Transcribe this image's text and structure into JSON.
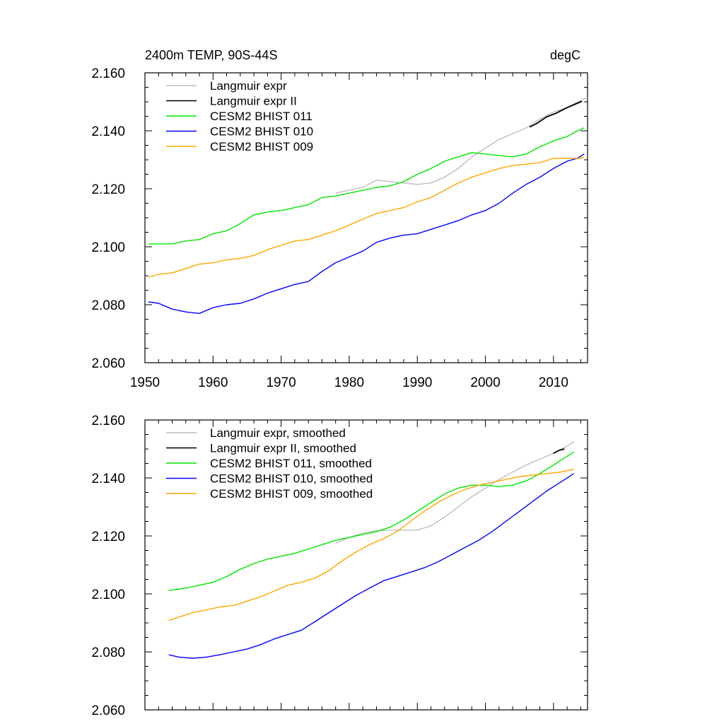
{
  "chart_data": [
    {
      "type": "line",
      "title_left": "2400m TEMP, 90S-44S",
      "title_right": "degC",
      "xlabel": "",
      "ylabel": "",
      "xlim": [
        1950,
        2015
      ],
      "ylim": [
        2.06,
        2.16
      ],
      "x_ticks": [
        1950,
        1960,
        1970,
        1980,
        1990,
        2000,
        2010
      ],
      "y_ticks": [
        "2.060",
        "2.080",
        "2.100",
        "2.120",
        "2.140",
        "2.160"
      ],
      "show_x_tick_labels": true,
      "grid": false,
      "legend_position": "top-left",
      "series": [
        {
          "name": "Langmuir expr",
          "color": "#bdbdbd",
          "points": [
            [
              1978,
              2.1185
            ],
            [
              1980,
              2.1195
            ],
            [
              1982,
              2.1205
            ],
            [
              1984,
              2.123
            ],
            [
              1986,
              2.1225
            ],
            [
              1988,
              2.122
            ],
            [
              1990,
              2.1215
            ],
            [
              1992,
              2.122
            ],
            [
              1994,
              2.124
            ],
            [
              1996,
              2.127
            ],
            [
              1998,
              2.131
            ],
            [
              2000,
              2.134
            ],
            [
              2002,
              2.137
            ],
            [
              2004,
              2.139
            ],
            [
              2006,
              2.141
            ],
            [
              2008,
              2.144
            ],
            [
              2010,
              2.1465
            ],
            [
              2012,
              2.148
            ],
            [
              2014,
              2.1505
            ],
            [
              2015,
              2.1515
            ]
          ]
        },
        {
          "name": "Langmuir expr II",
          "color": "#000000",
          "points": [
            [
              2006.5,
              2.1413
            ],
            [
              2007.5,
              2.1425
            ],
            [
              2009,
              2.1448
            ],
            [
              2010.5,
              2.1462
            ],
            [
              2012,
              2.148
            ],
            [
              2013.5,
              2.1495
            ],
            [
              2014.2,
              2.1502
            ]
          ]
        },
        {
          "name": "CESM2 BHIST 011",
          "color": "#00e600",
          "points": [
            [
              1950.5,
              2.101
            ],
            [
              1952,
              2.101
            ],
            [
              1954,
              2.101
            ],
            [
              1956,
              2.102
            ],
            [
              1958,
              2.1025
            ],
            [
              1960,
              2.1045
            ],
            [
              1962,
              2.1055
            ],
            [
              1964,
              2.108
            ],
            [
              1966,
              2.111
            ],
            [
              1968,
              2.112
            ],
            [
              1970,
              2.1125
            ],
            [
              1972,
              2.1135
            ],
            [
              1974,
              2.1145
            ],
            [
              1976,
              2.117
            ],
            [
              1978,
              2.1175
            ],
            [
              1980,
              2.1185
            ],
            [
              1982,
              2.1195
            ],
            [
              1984,
              2.1205
            ],
            [
              1986,
              2.121
            ],
            [
              1988,
              2.1225
            ],
            [
              1990,
              2.125
            ],
            [
              1992,
              2.127
            ],
            [
              1994,
              2.1295
            ],
            [
              1996,
              2.131
            ],
            [
              1998,
              2.1325
            ],
            [
              2000,
              2.132
            ],
            [
              2002,
              2.1315
            ],
            [
              2004,
              2.131
            ],
            [
              2006,
              2.132
            ],
            [
              2008,
              2.1345
            ],
            [
              2010,
              2.1365
            ],
            [
              2012,
              2.138
            ],
            [
              2013.5,
              2.14
            ],
            [
              2014.5,
              2.141
            ]
          ]
        },
        {
          "name": "CESM2 BHIST 010",
          "color": "#0000ff",
          "points": [
            [
              1950.5,
              2.081
            ],
            [
              1952,
              2.0805
            ],
            [
              1954,
              2.0785
            ],
            [
              1956,
              2.0775
            ],
            [
              1958,
              2.077
            ],
            [
              1960,
              2.079
            ],
            [
              1962,
              2.08
            ],
            [
              1964,
              2.0805
            ],
            [
              1966,
              2.082
            ],
            [
              1968,
              2.084
            ],
            [
              1970,
              2.0855
            ],
            [
              1972,
              2.087
            ],
            [
              1974,
              2.088
            ],
            [
              1976,
              2.0915
            ],
            [
              1978,
              2.0945
            ],
            [
              1980,
              2.0965
            ],
            [
              1982,
              2.0985
            ],
            [
              1984,
              2.1015
            ],
            [
              1986,
              2.103
            ],
            [
              1988,
              2.104
            ],
            [
              1990,
              2.1045
            ],
            [
              1992,
              2.106
            ],
            [
              1994,
              2.1075
            ],
            [
              1996,
              2.109
            ],
            [
              1998,
              2.111
            ],
            [
              2000,
              2.1125
            ],
            [
              2002,
              2.115
            ],
            [
              2004,
              2.1185
            ],
            [
              2006,
              2.1215
            ],
            [
              2008,
              2.124
            ],
            [
              2010,
              2.127
            ],
            [
              2012,
              2.1295
            ],
            [
              2013.5,
              2.1305
            ],
            [
              2014.5,
              2.132
            ]
          ]
        },
        {
          "name": "CESM2 BHIST 009",
          "color": "#ffa500",
          "points": [
            [
              1950.5,
              2.0895
            ],
            [
              1952,
              2.0905
            ],
            [
              1954,
              2.091
            ],
            [
              1956,
              2.0925
            ],
            [
              1958,
              2.094
            ],
            [
              1960,
              2.0945
            ],
            [
              1962,
              2.0955
            ],
            [
              1964,
              2.096
            ],
            [
              1966,
              2.097
            ],
            [
              1968,
              2.099
            ],
            [
              1970,
              2.1005
            ],
            [
              1972,
              2.102
            ],
            [
              1974,
              2.1025
            ],
            [
              1976,
              2.104
            ],
            [
              1978,
              2.1055
            ],
            [
              1980,
              2.1075
            ],
            [
              1982,
              2.1095
            ],
            [
              1984,
              2.1115
            ],
            [
              1986,
              2.1125
            ],
            [
              1988,
              2.1135
            ],
            [
              1990,
              2.1155
            ],
            [
              1992,
              2.117
            ],
            [
              1994,
              2.1195
            ],
            [
              1996,
              2.122
            ],
            [
              1998,
              2.124
            ],
            [
              2000,
              2.1255
            ],
            [
              2002,
              2.127
            ],
            [
              2004,
              2.128
            ],
            [
              2006,
              2.1285
            ],
            [
              2008,
              2.129
            ],
            [
              2010,
              2.1305
            ],
            [
              2012,
              2.1305
            ],
            [
              2014,
              2.1305
            ],
            [
              2014.5,
              2.131
            ]
          ]
        }
      ]
    },
    {
      "type": "line",
      "title_left": "",
      "title_right": "",
      "xlabel": "",
      "ylabel": "",
      "xlim": [
        1950,
        2015
      ],
      "ylim": [
        2.06,
        2.16
      ],
      "x_ticks": [
        1950,
        1960,
        1970,
        1980,
        1990,
        2000,
        2010
      ],
      "y_ticks": [
        "2.060",
        "2.080",
        "2.100",
        "2.120",
        "2.140",
        "2.160"
      ],
      "show_x_tick_labels": false,
      "grid": false,
      "legend_position": "top-left",
      "series": [
        {
          "name": "Langmuir expr, smoothed",
          "color": "#bdbdbd",
          "points": [
            [
              1978,
              2.1175
            ],
            [
              1980,
              2.1195
            ],
            [
              1982,
              2.121
            ],
            [
              1984,
              2.1218
            ],
            [
              1986,
              2.122
            ],
            [
              1988,
              2.122
            ],
            [
              1990,
              2.122
            ],
            [
              1992,
              2.1235
            ],
            [
              1994,
              2.1265
            ],
            [
              1996,
              2.13
            ],
            [
              1998,
              2.1335
            ],
            [
              2000,
              2.1365
            ],
            [
              2002,
              2.1395
            ],
            [
              2004,
              2.142
            ],
            [
              2006,
              2.1445
            ],
            [
              2008,
              2.1465
            ],
            [
              2010,
              2.1485
            ],
            [
              2012,
              2.151
            ],
            [
              2013,
              2.1525
            ]
          ]
        },
        {
          "name": "Langmuir expr II, smoothed",
          "color": "#000000",
          "points": [
            [
              2010,
              2.1485
            ],
            [
              2010.8,
              2.1495
            ],
            [
              2011.6,
              2.15
            ]
          ]
        },
        {
          "name": "CESM2 BHIST 011, smoothed",
          "color": "#00e600",
          "points": [
            [
              1953.5,
              2.1012
            ],
            [
              1956,
              2.102
            ],
            [
              1958,
              2.103
            ],
            [
              1960,
              2.104
            ],
            [
              1962,
              2.106
            ],
            [
              1964,
              2.1085
            ],
            [
              1966,
              2.1105
            ],
            [
              1968,
              2.112
            ],
            [
              1970,
              2.113
            ],
            [
              1972,
              2.114
            ],
            [
              1974,
              2.1155
            ],
            [
              1976,
              2.117
            ],
            [
              1978,
              2.1185
            ],
            [
              1980,
              2.1195
            ],
            [
              1982,
              2.1205
            ],
            [
              1984,
              2.1215
            ],
            [
              1986,
              2.123
            ],
            [
              1988,
              2.1255
            ],
            [
              1990,
              2.1285
            ],
            [
              1992,
              2.1315
            ],
            [
              1994,
              2.1345
            ],
            [
              1996,
              2.1365
            ],
            [
              1998,
              2.1375
            ],
            [
              2000,
              2.1375
            ],
            [
              2002,
              2.137
            ],
            [
              2004,
              2.1375
            ],
            [
              2006,
              2.139
            ],
            [
              2008,
              2.1415
            ],
            [
              2010,
              2.1445
            ],
            [
              2012,
              2.1475
            ],
            [
              2013,
              2.149
            ]
          ]
        },
        {
          "name": "CESM2 BHIST 010, smoothed",
          "color": "#0000ff",
          "points": [
            [
              1953.5,
              2.079
            ],
            [
              1955,
              2.0782
            ],
            [
              1957,
              2.0778
            ],
            [
              1959,
              2.0782
            ],
            [
              1961,
              2.079
            ],
            [
              1963,
              2.08
            ],
            [
              1965,
              2.081
            ],
            [
              1967,
              2.0825
            ],
            [
              1969,
              2.0845
            ],
            [
              1971,
              2.086
            ],
            [
              1973,
              2.0875
            ],
            [
              1975,
              2.0905
            ],
            [
              1977,
              2.0935
            ],
            [
              1979,
              2.0965
            ],
            [
              1981,
              2.0995
            ],
            [
              1983,
              2.102
            ],
            [
              1985,
              2.1045
            ],
            [
              1987,
              2.106
            ],
            [
              1989,
              2.1075
            ],
            [
              1991,
              2.109
            ],
            [
              1993,
              2.111
            ],
            [
              1995,
              2.1135
            ],
            [
              1997,
              2.116
            ],
            [
              1999,
              2.1185
            ],
            [
              2001,
              2.1215
            ],
            [
              2003,
              2.125
            ],
            [
              2005,
              2.1285
            ],
            [
              2007,
              2.132
            ],
            [
              2009,
              2.1355
            ],
            [
              2011,
              2.1385
            ],
            [
              2013,
              2.1415
            ]
          ]
        },
        {
          "name": "CESM2 BHIST 009, smoothed",
          "color": "#ffa500",
          "points": [
            [
              1953.5,
              2.0908
            ],
            [
              1955,
              2.092
            ],
            [
              1957,
              2.0935
            ],
            [
              1959,
              2.0945
            ],
            [
              1961,
              2.0955
            ],
            [
              1963,
              2.096
            ],
            [
              1965,
              2.0975
            ],
            [
              1967,
              2.099
            ],
            [
              1969,
              2.101
            ],
            [
              1971,
              2.103
            ],
            [
              1973,
              2.104
            ],
            [
              1975,
              2.1055
            ],
            [
              1977,
              2.108
            ],
            [
              1979,
              2.1115
            ],
            [
              1981,
              2.1145
            ],
            [
              1983,
              2.117
            ],
            [
              1985,
              2.119
            ],
            [
              1987,
              2.1215
            ],
            [
              1989,
              2.125
            ],
            [
              1991,
              2.1285
            ],
            [
              1993,
              2.1315
            ],
            [
              1995,
              2.134
            ],
            [
              1997,
              2.136
            ],
            [
              1999,
              2.1375
            ],
            [
              2001,
              2.1385
            ],
            [
              2003,
              2.1395
            ],
            [
              2005,
              2.1405
            ],
            [
              2007,
              2.141
            ],
            [
              2009,
              2.1415
            ],
            [
              2011,
              2.142
            ],
            [
              2013,
              2.143
            ]
          ]
        }
      ]
    }
  ]
}
